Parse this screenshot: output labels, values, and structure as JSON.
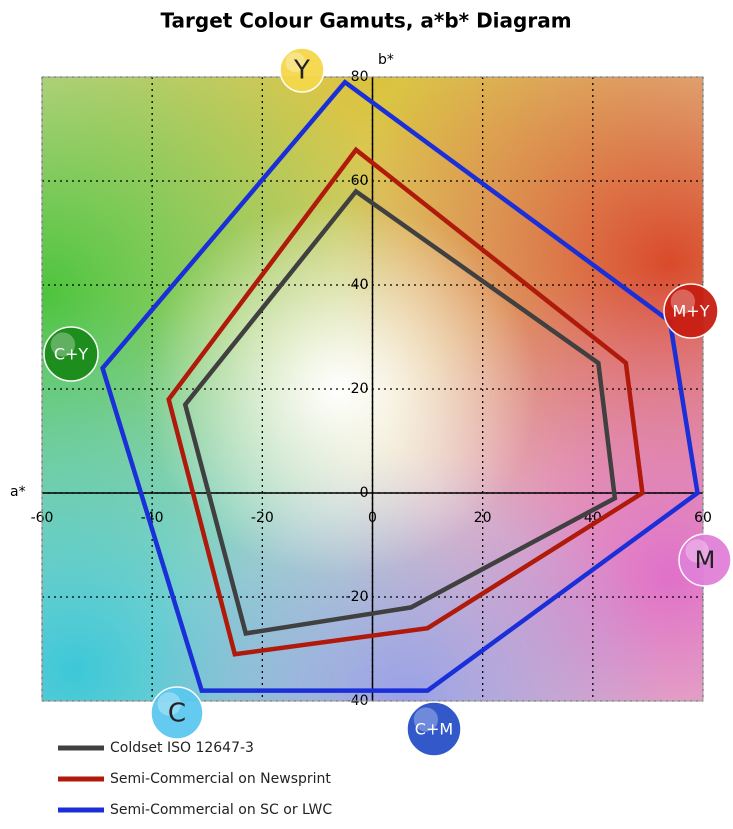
{
  "chart_data": {
    "type": "polygon",
    "title": "Target Colour Gamuts, a*b* Diagram",
    "x_label": "a*",
    "y_label": "b*",
    "xlim": [
      -60,
      60
    ],
    "ylim": [
      -40,
      80
    ],
    "xticks": [
      -60,
      -40,
      -20,
      0,
      20,
      40,
      60
    ],
    "yticks": [
      -40,
      -20,
      0,
      20,
      40,
      60,
      80
    ],
    "grid": true,
    "legend": "bottom-left",
    "annotations": [
      "Y",
      "M+Y",
      "M",
      "C+M",
      "C",
      "C+Y"
    ],
    "series": [
      {
        "name": "Coldset ISO 12647-3",
        "color": "#404040",
        "x": [
          -3,
          41,
          44,
          7,
          -23,
          -34
        ],
        "values": [
          58,
          25,
          -1,
          -22,
          -27,
          17
        ]
      },
      {
        "name": "Semi-Commercial on Newsprint",
        "color": "#b01a0a",
        "x": [
          -3,
          46,
          49,
          10,
          -25,
          -37
        ],
        "values": [
          66,
          25,
          0,
          -26,
          -31,
          18
        ]
      },
      {
        "name": "Semi-Commercial on SC or LWC",
        "color": "#1a2fd8",
        "x": [
          -5,
          54,
          59,
          10,
          -31,
          -49
        ],
        "values": [
          79,
          33,
          0,
          -38,
          -38,
          24
        ]
      }
    ]
  }
}
